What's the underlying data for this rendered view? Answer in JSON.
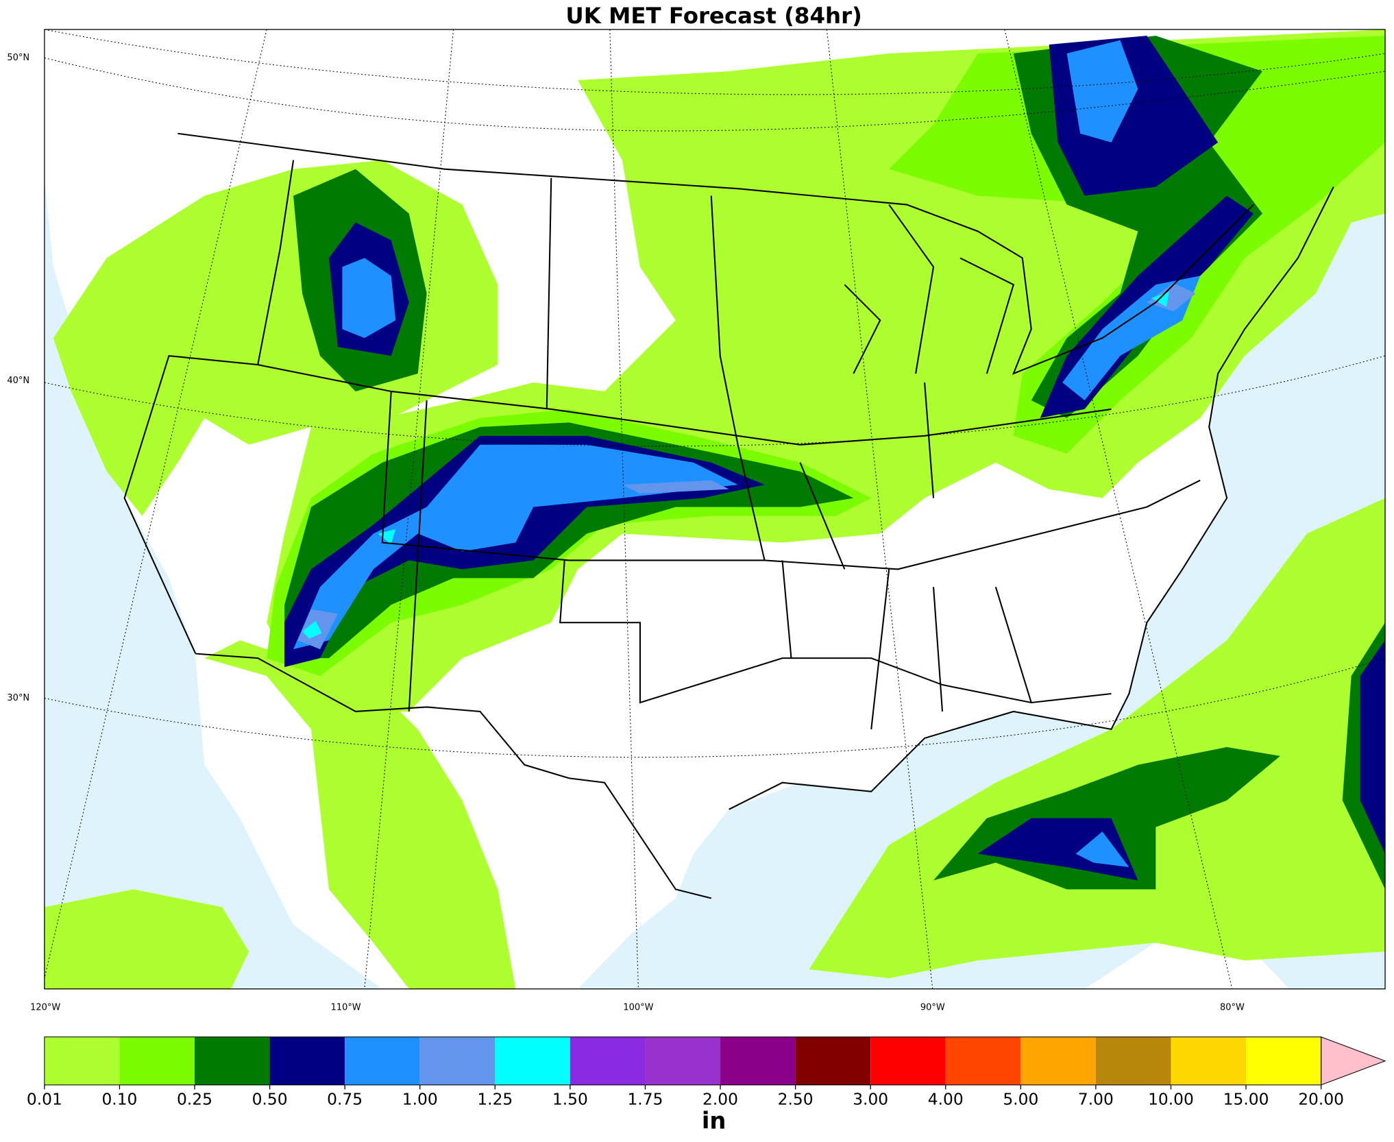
{
  "header": {
    "title": "UK MET Forecast (84hr)"
  },
  "map": {
    "lat_labels": [
      "50°N",
      "40°N",
      "30°N"
    ],
    "lon_labels": [
      "120°W",
      "110°W",
      "100°W",
      "90°W",
      "80°W"
    ]
  },
  "colorbar": {
    "levels": [
      {
        "value": 0.01,
        "label": "0.01"
      },
      {
        "value": 0.1,
        "label": "0.10"
      },
      {
        "value": 0.25,
        "label": "0.25"
      },
      {
        "value": 0.5,
        "label": "0.50"
      },
      {
        "value": 0.75,
        "label": "0.75"
      },
      {
        "value": 1,
        "label": "1.00"
      },
      {
        "value": 1.25,
        "label": "1.25"
      },
      {
        "value": 1.5,
        "label": "1.50"
      },
      {
        "value": 1.75,
        "label": "1.75"
      },
      {
        "value": 2,
        "label": "2.00"
      },
      {
        "value": 2.5,
        "label": "2.50"
      },
      {
        "value": 3,
        "label": "3.00"
      },
      {
        "value": 4,
        "label": "4.00"
      },
      {
        "value": 5,
        "label": "5.00"
      },
      {
        "value": 7,
        "label": "7.00"
      },
      {
        "value": 10,
        "label": "10.00"
      },
      {
        "value": 15,
        "label": "15.00"
      },
      {
        "value": 20,
        "label": "20.00"
      }
    ],
    "colors": [
      "#adff2f",
      "#7cfc00",
      "#007a00",
      "#000080",
      "#1e90ff",
      "#6495ed",
      "#00ffff",
      "#8a2be2",
      "#9932cc",
      "#8b008b",
      "#800000",
      "#ff0000",
      "#ff4500",
      "#ffa500",
      "#b8860b",
      "#ffd700",
      "#ffff00"
    ],
    "extend_color": "#ffc0cb",
    "unit": "in"
  }
}
